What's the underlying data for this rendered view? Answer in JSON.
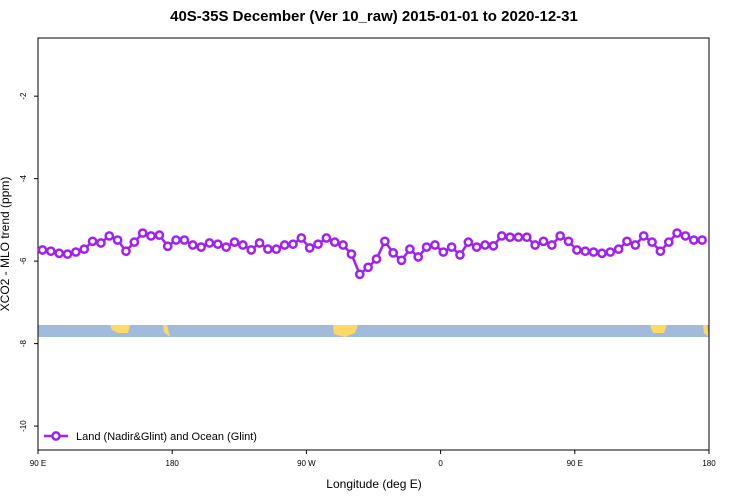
{
  "chart_data": {
    "type": "line",
    "title": "40S-35S December (Ver 10_raw)   2015-01-01 to 2020-12-31",
    "x_label": "Longitude (deg E)",
    "y_label": "XCO2 - MLO trend (ppm)",
    "xlim": [
      90,
      540
    ],
    "ylim": [
      -10.58,
      -0.59
    ],
    "xticks": [
      {
        "value": 90,
        "label": "90 E"
      },
      180,
      {
        "value": 270,
        "label": "90 W"
      },
      {
        "value": 360,
        "label": "0"
      },
      {
        "value": 450,
        "label": "90 E"
      },
      {
        "value": 540,
        "label": "180"
      }
    ],
    "yticks": [
      -10,
      -8,
      -6,
      -4,
      -2
    ],
    "legend": "bottom left",
    "x": [
      93,
      98.6,
      104.2,
      109.8,
      115.4,
      121,
      126.6,
      132.2,
      137.8,
      143.4,
      149,
      154.6,
      160.2,
      165.8,
      171.4,
      177,
      182.6,
      188.2,
      193.8,
      199.4,
      205,
      210.6,
      216.2,
      221.8,
      227.4,
      233,
      238.6,
      244.2,
      249.8,
      255.4,
      261,
      266.6,
      272.2,
      277.8,
      283.4,
      289,
      294.6,
      300.2,
      305.8,
      311.4,
      317,
      322.6,
      328.2,
      333.8,
      339.4,
      345,
      350.6,
      356.2,
      361.8,
      367.4,
      373,
      378.6,
      384.2,
      389.8,
      395.4,
      401,
      406.6,
      412.2,
      417.8,
      423.4,
      429,
      434.6,
      440.2,
      445.8,
      451.4,
      457,
      462.6,
      468.2,
      473.8,
      479.4,
      485,
      490.6,
      496.2,
      501.8,
      507.4,
      513,
      518.6,
      524.2,
      529.8,
      535.4
    ],
    "series": [
      {
        "name": "Land (Nadir&Glint) and Ocean (Glint)",
        "color": "#a020f0",
        "values": [
          -5.73,
          -5.76,
          -5.81,
          -5.83,
          -5.78,
          -5.71,
          -5.52,
          -5.56,
          -5.39,
          -5.49,
          -5.76,
          -5.54,
          -5.32,
          -5.39,
          -5.37,
          -5.64,
          -5.49,
          -5.49,
          -5.61,
          -5.66,
          -5.56,
          -5.59,
          -5.66,
          -5.54,
          -5.61,
          -5.73,
          -5.56,
          -5.71,
          -5.71,
          -5.61,
          -5.59,
          -5.44,
          -5.68,
          -5.59,
          -5.44,
          -5.54,
          -5.61,
          -5.83,
          -6.32,
          -6.15,
          -5.95,
          -5.52,
          -5.8,
          -5.98,
          -5.71,
          -5.9,
          -5.66,
          -5.61,
          -5.78,
          -5.66,
          -5.85,
          -5.54,
          -5.66,
          -5.61,
          -5.63,
          -5.39,
          -5.42,
          -5.42,
          -5.42,
          -5.61,
          -5.52,
          -5.61,
          -5.39,
          -5.52,
          -5.73,
          -5.76,
          -5.78,
          -5.81,
          -5.78,
          -5.71,
          -5.52,
          -5.61,
          -5.39,
          -5.54,
          -5.76,
          -5.54,
          -5.32,
          -5.39,
          -5.49,
          -5.49
        ]
      }
    ]
  }
}
